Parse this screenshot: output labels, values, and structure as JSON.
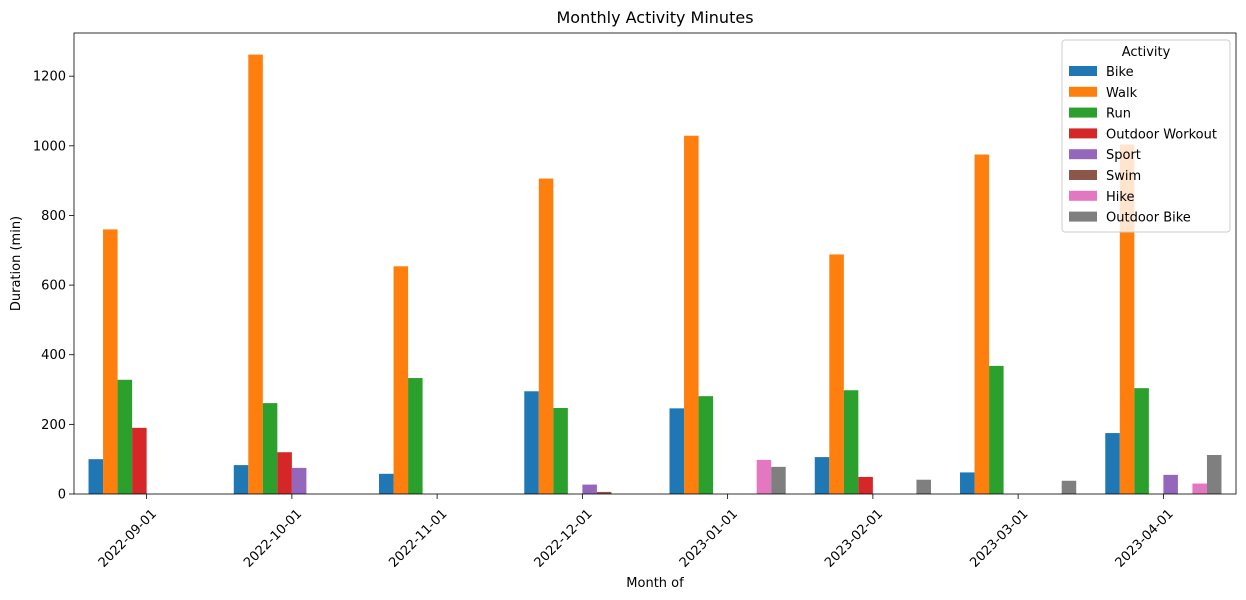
{
  "chart_data": {
    "type": "bar",
    "title": "Monthly Activity Minutes",
    "xlabel": "Month of",
    "ylabel": "Duration (min)",
    "ylim": [
      0,
      1324
    ],
    "yticks": [
      0,
      200,
      400,
      600,
      800,
      1000,
      1200
    ],
    "grid": false,
    "legend": {
      "title": "Activity",
      "placement": "top-right"
    },
    "categories": [
      "2022-09-01",
      "2022-10-01",
      "2022-11-01",
      "2022-12-01",
      "2023-01-01",
      "2023-02-01",
      "2023-03-01",
      "2023-04-01"
    ],
    "series": [
      {
        "name": "Bike",
        "color": "#1f77b4",
        "values": [
          100,
          83,
          58,
          295,
          246,
          106,
          62,
          175
        ]
      },
      {
        "name": "Walk",
        "color": "#ff7f0e",
        "values": [
          760,
          1262,
          654,
          906,
          1029,
          688,
          975,
          1004
        ]
      },
      {
        "name": "Run",
        "color": "#2ca02c",
        "values": [
          328,
          261,
          333,
          247,
          281,
          298,
          368,
          304
        ]
      },
      {
        "name": "Outdoor Workout",
        "color": "#d62728",
        "values": [
          190,
          120,
          0,
          0,
          0,
          49,
          0,
          0
        ]
      },
      {
        "name": "Sport",
        "color": "#9467bd",
        "values": [
          0,
          75,
          0,
          27,
          0,
          0,
          0,
          55
        ]
      },
      {
        "name": "Swim",
        "color": "#8c564b",
        "values": [
          0,
          0,
          0,
          6,
          0,
          0,
          0,
          0
        ]
      },
      {
        "name": "Hike",
        "color": "#e377c2",
        "values": [
          0,
          0,
          0,
          0,
          98,
          0,
          0,
          30
        ]
      },
      {
        "name": "Outdoor Bike",
        "color": "#7f7f7f",
        "values": [
          0,
          0,
          0,
          0,
          78,
          41,
          38,
          112
        ]
      }
    ]
  }
}
